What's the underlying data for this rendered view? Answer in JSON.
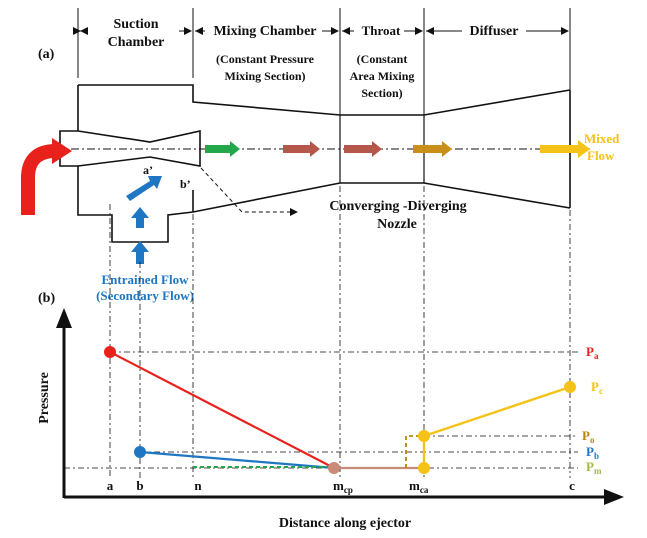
{
  "colors": {
    "primary_red": "#e8211d",
    "secondary_blue": "#1f77c3",
    "mixed_yellow": "#f5c218",
    "green": "#22a84a",
    "brown": "#b5574b",
    "ochre": "#c8901a",
    "pm_green": "#a8b845",
    "po_ochre": "#b8860b",
    "pb_blue": "#1f77c3",
    "pcp_pink": "#c98a7a"
  },
  "panel_a": {
    "label": "(a)",
    "sections": {
      "suction": [
        "Suction",
        "Chamber"
      ],
      "mixing": "Mixing Chamber",
      "mixing_sub": [
        "(Constant Pressure",
        "Mixing Section)"
      ],
      "throat": "Throat",
      "throat_sub": [
        "(Constant",
        "Area Mixing",
        "Section)"
      ],
      "diffuser": "Diffuser"
    },
    "labels": {
      "a_prime": "a’",
      "b_prime": "b’",
      "nozzle": [
        "Converging -Diverging",
        "Nozzle"
      ],
      "mixed_flow": [
        "Mixed",
        "Flow"
      ],
      "entrained": [
        "Entrained Flow",
        "(Secondary Flow)"
      ]
    }
  },
  "panel_b": {
    "label": "(b)",
    "y_axis_label": "Pressure",
    "x_axis_label": "Distance along ejector",
    "x_ticks": {
      "a": "a",
      "b": "b",
      "n": "n",
      "mcp": "m",
      "mcp_sub": "cp",
      "mca": "m",
      "mca_sub": "ca",
      "c": "c"
    },
    "pressure_labels": {
      "Pa": {
        "main": "P",
        "sub": "a"
      },
      "Pc": {
        "main": "P",
        "sub": "c"
      },
      "Po": {
        "main": "P",
        "sub": "o"
      },
      "Pb": {
        "main": "P",
        "sub": "b"
      },
      "Pm": {
        "main": "P",
        "sub": "m"
      }
    }
  }
}
